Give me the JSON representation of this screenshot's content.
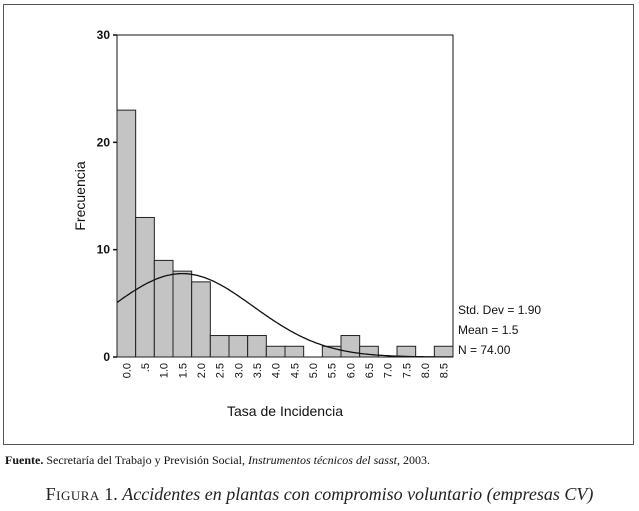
{
  "chart_data": {
    "type": "bar",
    "xlabel": "Tasa de Incidencia",
    "ylabel": "Frecuencia",
    "categories": [
      "0.0",
      ".5",
      "1.0",
      "1.5",
      "2.0",
      "2.5",
      "3.0",
      "3.5",
      "4.0",
      "4.5",
      "5.0",
      "5.5",
      "6.0",
      "6.5",
      "7.0",
      "7.5",
      "8.0",
      "8.5"
    ],
    "values": [
      23,
      13,
      9,
      8,
      7,
      2,
      2,
      2,
      1,
      1,
      0,
      1,
      2,
      1,
      0,
      1,
      0,
      1
    ],
    "ylim": [
      0,
      30
    ],
    "yticks": [
      "0",
      "10",
      "20",
      "30"
    ],
    "normal_curve": {
      "mean": 1.5,
      "std_dev": 1.9,
      "n": 74,
      "bin_width": 0.5
    },
    "stats": [
      "Std. Dev = 1.90",
      "Mean = 1.5",
      "N = 74.00"
    ],
    "colors": {
      "bar_fill": "#c4c4c4",
      "bar_stroke": "#222222",
      "curve": "#111111"
    }
  },
  "source": {
    "label": "Fuente.",
    "text_before": " Secretaría del Trabajo y Previsión Social, ",
    "title": "Instrumentos técnicos del sasst",
    "text_after": ", 2003."
  },
  "caption": {
    "prefix": "Figura",
    "number": " 1. ",
    "title": "Accidentes en plantas con compromiso voluntario (empresas CV)"
  }
}
